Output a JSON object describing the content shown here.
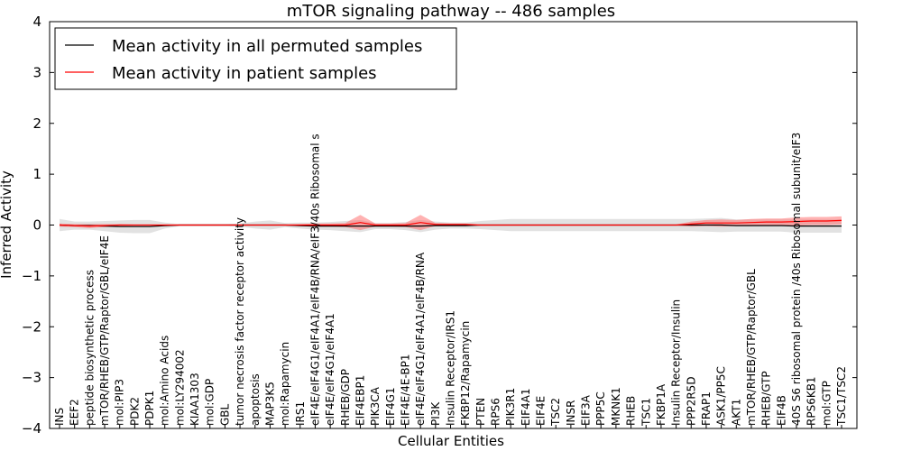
{
  "chart_data": {
    "type": "line",
    "title": "mTOR signaling pathway -- 486 samples",
    "xlabel": "Cellular Entities",
    "ylabel": "Inferred Activity",
    "ylim": [
      -4,
      4
    ],
    "yticks": [
      -4,
      -3,
      -2,
      -1,
      0,
      1,
      2,
      3,
      4
    ],
    "ytick_labels": [
      "−4",
      "−3",
      "−2",
      "−1",
      "0",
      "1",
      "2",
      "3",
      "4"
    ],
    "grid": false,
    "legend_position": "top-left",
    "categories": [
      "INS",
      "EEF2",
      "peptide biosynthetic process",
      "mTOR/RHEB/GTP/Raptor/GBL/eIF4E",
      "mol:PIP3",
      "PDK2",
      "PDPK1",
      "mol:Amino Acids",
      "mol:LY294002",
      "KIAA1303",
      "mol:GDP",
      "GBL",
      "tumor necrosis factor receptor activity",
      "apoptosis",
      "MAP3K5",
      "mol:Rapamycin",
      "IRS1",
      "eIF4E/eIF4G1/eIF4A1/eIF4B/RNA/eIF3/40s Ribosomal s",
      "eIF4E/eIF4G1/eIF4A1",
      "RHEB/GDP",
      "EIF4EBP1",
      "PIK3CA",
      "EIF4G1",
      "EIF4E/4E-BP1",
      "eIF4E/eIF4G1/eIF4A1/eIF4B/RNA",
      "PI3K",
      "Insulin Receptor/IRS1",
      "FKBP12/Rapamycin",
      "PTEN",
      "RPS6",
      "PIK3R1",
      "EIF4A1",
      "EIF4E",
      "TSC2",
      "INSR",
      "EIF3A",
      "PPP5C",
      "MKNK1",
      "RHEB",
      "TSC1",
      "FKBP1A",
      "Insulin Receptor/Insulin",
      "PPP2R5D",
      "FRAP1",
      "ASK1/PP5C",
      "AKT1",
      "mTOR/RHEB/GTP/Raptor/GBL",
      "RHEB/GTP",
      "EIF4B",
      "40S S6 ribosomal protein /40s Ribosomal subunit/eIF3",
      "RPS6KB1",
      "mol:GTP",
      "TSC1/TSC2"
    ],
    "series": [
      {
        "name": "Mean activity in all permuted samples",
        "color": "#000000",
        "values": [
          0,
          -0.01,
          -0.01,
          -0.02,
          -0.03,
          -0.03,
          -0.03,
          -0.01,
          0,
          0,
          0,
          0,
          0,
          0,
          0,
          0,
          -0.01,
          -0.02,
          -0.02,
          -0.02,
          -0.02,
          -0.02,
          -0.02,
          -0.02,
          -0.02,
          -0.01,
          -0.01,
          -0.01,
          0,
          0,
          0,
          0,
          0,
          0,
          0,
          0,
          0,
          0,
          0,
          0,
          0,
          0,
          0,
          0,
          0,
          -0.01,
          -0.01,
          -0.01,
          -0.01,
          -0.02,
          -0.02,
          -0.02,
          -0.02
        ],
        "band": [
          0.12,
          0.08,
          0.08,
          0.1,
          0.12,
          0.13,
          0.13,
          0.06,
          0.02,
          0.02,
          0.02,
          0.02,
          0.03,
          0.07,
          0.09,
          0.04,
          0.06,
          0.07,
          0.08,
          0.1,
          0.12,
          0.06,
          0.06,
          0.08,
          0.12,
          0.08,
          0.06,
          0.06,
          0.08,
          0.1,
          0.12,
          0.12,
          0.12,
          0.12,
          0.12,
          0.12,
          0.12,
          0.12,
          0.12,
          0.12,
          0.12,
          0.12,
          0.12,
          0.13,
          0.14,
          0.12,
          0.12,
          0.12,
          0.12,
          0.13,
          0.13,
          0.13,
          0.13
        ]
      },
      {
        "name": "Mean activity in patient samples",
        "color": "#ff0000",
        "values": [
          0,
          -0.01,
          -0.02,
          -0.01,
          0,
          0,
          0,
          0,
          0,
          0,
          0,
          0,
          0,
          0,
          0,
          0,
          0,
          0,
          0,
          0,
          0.05,
          0,
          0,
          0,
          0.05,
          0.01,
          0.01,
          0.01,
          0,
          0,
          0,
          0,
          0,
          0,
          0,
          0,
          0,
          0,
          0,
          0,
          0,
          0,
          0.02,
          0.04,
          0.04,
          0.04,
          0.05,
          0.06,
          0.06,
          0.07,
          0.08,
          0.08,
          0.09
        ],
        "band": [
          0.03,
          0.03,
          0.04,
          0.03,
          0.02,
          0.01,
          0.01,
          0.01,
          0.01,
          0.01,
          0.01,
          0.01,
          0.01,
          0.01,
          0.01,
          0.01,
          0.02,
          0.03,
          0.03,
          0.04,
          0.15,
          0.03,
          0.03,
          0.04,
          0.15,
          0.03,
          0.02,
          0.02,
          0.01,
          0.01,
          0.01,
          0.01,
          0.01,
          0.01,
          0.01,
          0.01,
          0.01,
          0.01,
          0.01,
          0.01,
          0.01,
          0.01,
          0.05,
          0.06,
          0.07,
          0.06,
          0.07,
          0.07,
          0.07,
          0.08,
          0.08,
          0.08,
          0.08
        ]
      }
    ]
  }
}
